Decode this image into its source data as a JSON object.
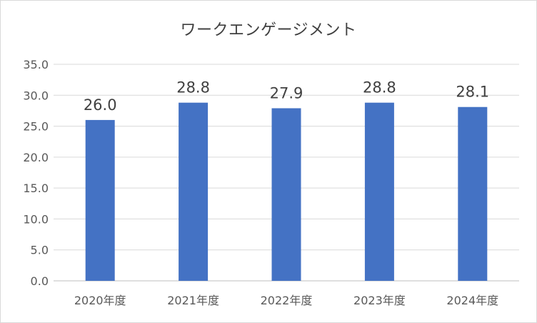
{
  "chart_data": {
    "type": "bar",
    "title": "ワークエンゲージメント",
    "categories": [
      "2020年度",
      "2021年度",
      "2022年度",
      "2023年度",
      "2024年度"
    ],
    "values": [
      26.0,
      28.8,
      27.9,
      28.8,
      28.1
    ],
    "data_labels": [
      "26.0",
      "28.8",
      "27.9",
      "28.8",
      "28.1"
    ],
    "y_ticks": [
      "0.0",
      "5.0",
      "10.0",
      "15.0",
      "20.0",
      "25.0",
      "30.0",
      "35.0"
    ],
    "ylim": [
      0,
      35
    ],
    "xlabel": "",
    "ylabel": "",
    "grid": true,
    "legend": "none",
    "bar_color": "#4472C4"
  }
}
